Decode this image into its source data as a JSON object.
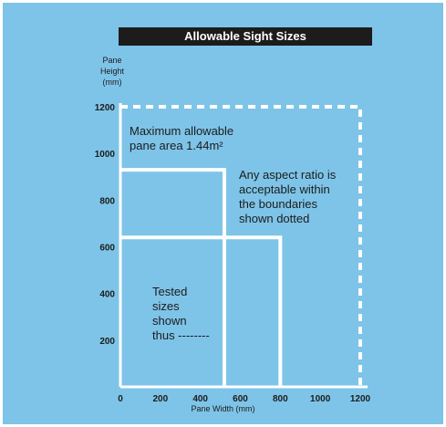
{
  "chart_data": {
    "type": "line",
    "title": "Allowable Sight Sizes",
    "ylabel": [
      "Pane",
      "Height",
      "(mm)"
    ],
    "xlabel": "Pane Width (mm)",
    "xlim": [
      0,
      1200
    ],
    "ylim": [
      0,
      1200
    ],
    "x_ticks": [
      "0",
      "200",
      "400",
      "600",
      "800",
      "1000",
      "1200"
    ],
    "y_ticks": [
      "200",
      "400",
      "600",
      "800",
      "1000",
      "1200"
    ],
    "series": [
      {
        "style": "dotted",
        "points": [
          [
            0,
            1200
          ],
          [
            1200,
            1200
          ],
          [
            1200,
            0
          ]
        ]
      },
      {
        "style": "solid",
        "points": [
          [
            0,
            930
          ],
          [
            520,
            930
          ],
          [
            520,
            0
          ]
        ]
      },
      {
        "style": "solid",
        "points": [
          [
            0,
            640
          ],
          [
            800,
            640
          ],
          [
            800,
            0
          ]
        ]
      }
    ],
    "annotations": {
      "max_area_line1": "Maximum allowable",
      "max_area_line2": "pane area 1.44m²",
      "aspect_line1": "Any aspect ratio is",
      "aspect_line2": "acceptable within",
      "aspect_line3": "the boundaries",
      "aspect_line4": "shown dotted",
      "tested_line1": "Tested",
      "tested_line2": "sizes",
      "tested_line3": "shown",
      "tested_line4": "thus --------"
    },
    "colors": {
      "background": "#7ec4e8",
      "banner": "#1c1c1c",
      "lines": "#ffffff",
      "text": "#1c1c1c"
    }
  }
}
